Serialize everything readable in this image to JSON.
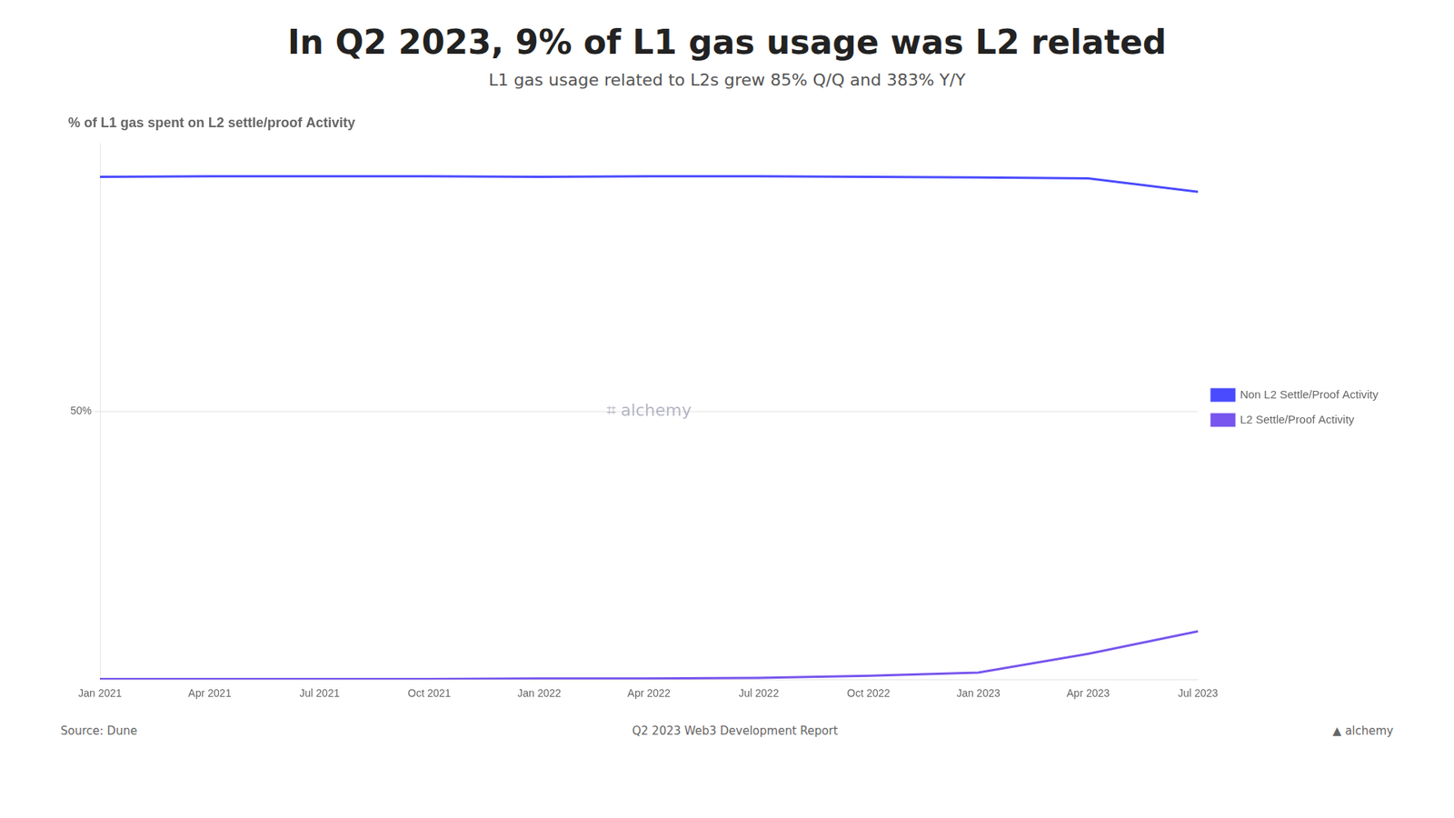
{
  "chart_data": {
    "type": "line",
    "title": "In Q2 2023, 9% of L1 gas usage was L2 related",
    "subtitle": "L1 gas usage related to L2s grew 85% Q/Q and 383% Y/Y",
    "annotations": [
      "% of L1 gas spent on L2 settle/proof Activity",
      "⌗ alchemy",
      "Source: Dune",
      "Q2 2023 Web3 Development Report",
      "▲ alchemy"
    ],
    "categories": [
      "Jan 2021",
      "Apr 2021",
      "Jul 2021",
      "Oct 2021",
      "Jan 2022",
      "Apr 2022",
      "Jul 2022",
      "Oct 2022",
      "Jan 2023",
      "Apr 2023",
      "Jul 2023"
    ],
    "series": [
      {
        "name": "Non L2 Settle/Proof Activity",
        "color": "#4a4aff",
        "values": [
          0.938,
          0.939,
          0.939,
          0.939,
          0.938,
          0.939,
          0.939,
          0.938,
          0.937,
          0.935,
          0.91
        ]
      },
      {
        "name": "L2 Settle/Proof Activity",
        "color": "#7755ee",
        "values": [
          0.001,
          0.001,
          0.001,
          0.001,
          0.002,
          0.002,
          0.003,
          0.007,
          0.013,
          0.048,
          0.09
        ]
      }
    ],
    "ylim": [
      0,
      1
    ],
    "yticks": [
      {
        "value": 0.5,
        "label": "50%"
      }
    ],
    "grid": "y",
    "legend": "right"
  }
}
